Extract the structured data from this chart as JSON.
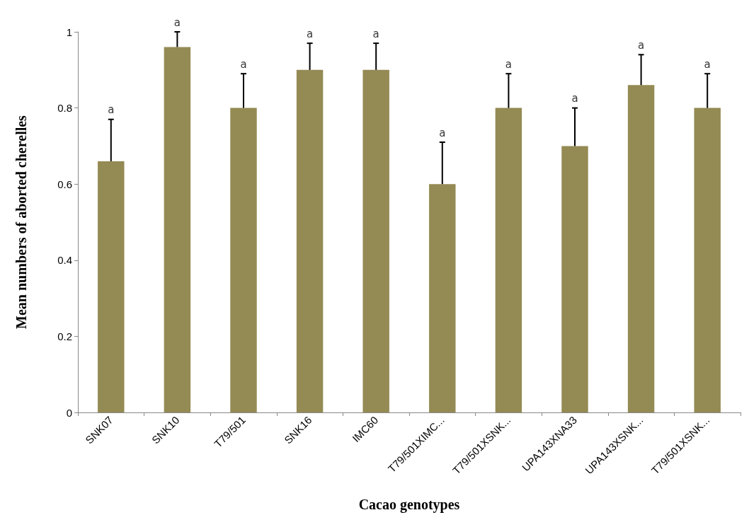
{
  "chart_data": {
    "type": "bar",
    "xlabel": "Cacao genotypes",
    "ylabel": "Mean numbers of aborted cherelles",
    "categories": [
      "SNK07",
      "SNK10",
      "T79/501",
      "SNK16",
      "IMC60",
      "T79/501XIMC...",
      "T79/501XSNK...",
      "UPA143XNA33",
      "UPA143XSNK...",
      "T79/501XSNK..."
    ],
    "values": [
      0.66,
      0.96,
      0.8,
      0.9,
      0.9,
      0.6,
      0.8,
      0.7,
      0.86,
      0.8
    ],
    "errors": [
      [
        0.66,
        0.77
      ],
      [
        0.96,
        1.0
      ],
      [
        0.8,
        0.89
      ],
      [
        0.9,
        0.97
      ],
      [
        0.9,
        0.97
      ],
      [
        0.6,
        0.71
      ],
      [
        0.8,
        0.89
      ],
      [
        0.7,
        0.8
      ],
      [
        0.86,
        0.94
      ],
      [
        0.8,
        0.89
      ]
    ],
    "color": "#948a54",
    "ylim": [
      0,
      1
    ],
    "yticks": [
      0,
      0.2,
      0.4,
      0.6,
      0.8,
      1
    ],
    "grid": false,
    "annotations": [
      "a",
      "a",
      "a",
      "a",
      "a",
      "a",
      "a",
      "a",
      "a",
      "a"
    ]
  }
}
